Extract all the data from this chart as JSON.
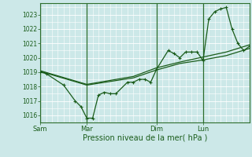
{
  "xlabel": "Pression niveau de la mer( hPa )",
  "bg_color": "#cce8e8",
  "grid_color_major": "#aacccc",
  "grid_color_minor": "#bbdddd",
  "line_color": "#1a5c1a",
  "spine_color": "#2d6e2d",
  "ylim": [
    1015.5,
    1023.8
  ],
  "yticks": [
    1016,
    1017,
    1018,
    1019,
    1020,
    1021,
    1022,
    1023
  ],
  "day_labels": [
    "Sam",
    "Mar",
    "Dim",
    "Lun"
  ],
  "day_positions": [
    0,
    48,
    120,
    168
  ],
  "total_hours": 216,
  "series1_x": [
    0,
    6,
    24,
    36,
    42,
    48,
    54,
    60,
    66,
    72,
    78,
    90,
    96,
    102,
    108,
    114,
    120,
    132,
    138,
    144,
    150,
    156,
    162,
    168,
    174,
    180,
    186,
    192,
    198,
    204,
    210,
    216
  ],
  "series1_y": [
    1019.0,
    1018.9,
    1018.1,
    1017.0,
    1016.6,
    1015.8,
    1015.8,
    1017.4,
    1017.6,
    1017.5,
    1017.5,
    1018.3,
    1018.3,
    1018.5,
    1018.5,
    1018.3,
    1019.2,
    1020.5,
    1020.3,
    1020.0,
    1020.4,
    1020.4,
    1020.4,
    1019.8,
    1022.7,
    1023.2,
    1023.4,
    1023.5,
    1022.0,
    1021.0,
    1020.5,
    1020.8
  ],
  "series2_x": [
    0,
    48,
    96,
    120,
    144,
    168,
    192,
    216
  ],
  "series2_y": [
    1019.1,
    1018.15,
    1018.7,
    1019.3,
    1019.7,
    1020.05,
    1020.4,
    1020.9
  ],
  "series3_x": [
    0,
    48,
    96,
    120,
    144,
    168,
    192,
    216
  ],
  "series3_y": [
    1019.05,
    1018.1,
    1018.6,
    1019.15,
    1019.6,
    1019.85,
    1020.15,
    1020.65
  ]
}
